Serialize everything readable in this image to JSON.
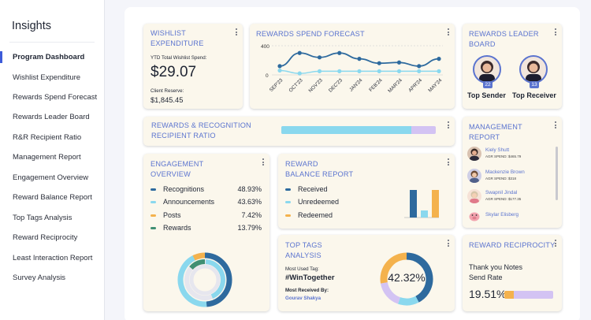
{
  "sidebar": {
    "title": "Insights",
    "items": [
      {
        "label": "Program Dashboard",
        "active": true
      },
      {
        "label": "Wishlist Expenditure"
      },
      {
        "label": "Rewards Spend Forecast"
      },
      {
        "label": "Rewards Leader Board"
      },
      {
        "label": "R&R Recipient Ratio"
      },
      {
        "label": "Management Report"
      },
      {
        "label": "Engagement Overview"
      },
      {
        "label": "Reward Balance Report"
      },
      {
        "label": "Top Tags Analysis"
      },
      {
        "label": "Reward Reciprocity"
      },
      {
        "label": "Least Interaction Report"
      },
      {
        "label": "Survey Analysis"
      }
    ]
  },
  "wishlist": {
    "title_line1": "WISHLIST",
    "title_line2": "EXPENDITURE",
    "ytd_label": "YTD Total Wishlist Spend:",
    "ytd_value": "$29.07",
    "reserve_label": "Client Reserve:",
    "reserve_value": "$1,845.45"
  },
  "forecast": {
    "title": "REWARDS SPEND FORECAST",
    "y_tick_top": "400",
    "y_tick_bottom": "0"
  },
  "leader": {
    "title_line1": "REWARDS LEADER",
    "title_line2": "BOARD",
    "sender_label": "Top Sender",
    "sender_count": "22",
    "receiver_label": "Top Receiver",
    "receiver_count": "13"
  },
  "ratio": {
    "title_line1": "REWARDS & RECOGNITION",
    "title_line2": "RECIPIENT RATIO",
    "bar_fraction": 0.84
  },
  "management": {
    "title_line1": "MANAGEMENT",
    "title_line2": "REPORT",
    "rows": [
      {
        "name": "Kiely Shutt",
        "sub": "AGR SPEND: $465.79"
      },
      {
        "name": "Mackenzie Brown",
        "sub": "AGR SPEND: $318"
      },
      {
        "name": "Swapnil Jindal",
        "sub": "AGR SPEND: $177.35"
      },
      {
        "name": "Skylar Elisberg",
        "sub": ""
      }
    ]
  },
  "engagement": {
    "title_line1": "ENGAGEMENT",
    "title_line2": "OVERVIEW",
    "items": [
      {
        "label": "Recognitions",
        "value": "48.93%",
        "color": "#2e6a9e"
      },
      {
        "label": "Announcements",
        "value": "43.63%",
        "color": "#8ad8ee"
      },
      {
        "label": "Posts",
        "value": "7.42%",
        "color": "#f4b24d"
      },
      {
        "label": "Rewards",
        "value": "13.79%",
        "color": "#3f8f73"
      }
    ]
  },
  "balance": {
    "title_line1": "REWARD",
    "title_line2": "BALANCE REPORT",
    "items": [
      {
        "label": "Received",
        "color": "#2e6a9e"
      },
      {
        "label": "Unredeemed",
        "color": "#8ad8ee"
      },
      {
        "label": "Redeemed",
        "color": "#f4b24d"
      }
    ]
  },
  "tags": {
    "title_line1": "TOP TAGS",
    "title_line2": "ANALYSIS",
    "most_used_label": "Most Used Tag:",
    "most_used_value": "#WinTogether",
    "most_received_label": "Most Received By:",
    "most_received_value": "Gourav Shakya",
    "donut_value": "42.32%"
  },
  "reciprocity": {
    "title": "REWARD RECIPROCITY",
    "line1": "Thank you Notes",
    "line2": "Send Rate",
    "value": "19.51%",
    "fraction": 0.1951
  },
  "chart_data": {
    "type": "line",
    "title": "REWARDS SPEND FORECAST",
    "categories": [
      "SEP'23",
      "OCT'23",
      "NOV'23",
      "DEC'23",
      "JAN'24",
      "FEB'24",
      "MAR'24",
      "APR'24",
      "MAY'24"
    ],
    "ylim": [
      0,
      400
    ],
    "series": [
      {
        "name": "",
        "color": "#2e6a9e",
        "values": [
          120,
          300,
          240,
          300,
          220,
          160,
          170,
          120,
          220
        ]
      },
      {
        "name": "",
        "color": "#8ad8ee",
        "values": [
          60,
          20,
          50,
          50,
          50,
          50,
          50,
          50,
          50
        ]
      }
    ],
    "colors": {
      "series1": "#2e6a9e",
      "series2": "#8ad8ee"
    }
  }
}
